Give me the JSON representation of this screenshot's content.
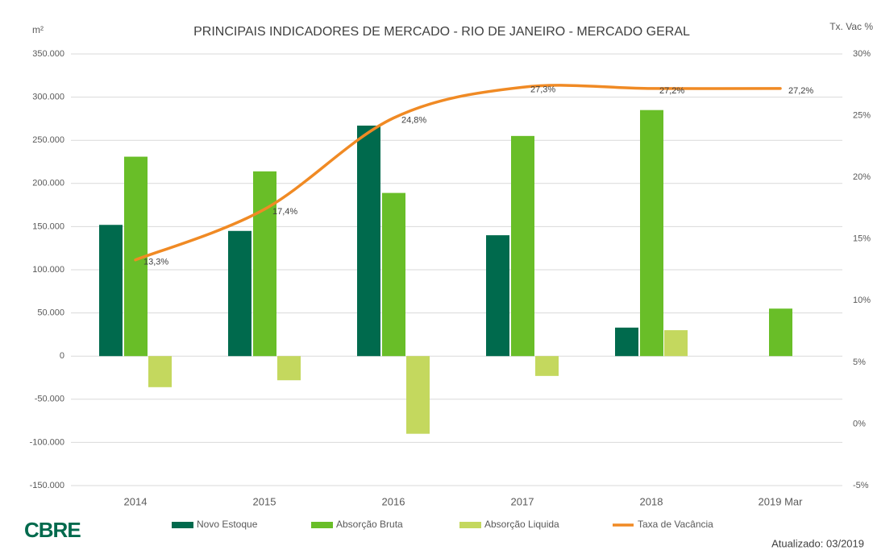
{
  "chart_data": {
    "type": "bar",
    "title": "PRINCIPAIS INDICADORES DE MERCADO - RIO DE JANEIRO - MERCADO GERAL",
    "y_label": "m²",
    "y2_label": "Tx. Vac %",
    "logo": "CBRE",
    "note": "Atualizado: 03/2019",
    "categories": [
      "2014",
      "2015",
      "2016",
      "2017",
      "2018",
      "2019 Mar"
    ],
    "series": [
      {
        "name": "Novo Estoque",
        "color": "#006a4d",
        "values": [
          152000,
          145000,
          267000,
          140000,
          33000,
          null
        ]
      },
      {
        "name": "Absorção Bruta",
        "color": "#69be28",
        "values": [
          231000,
          214000,
          189000,
          255000,
          285000,
          55000
        ]
      },
      {
        "name": "Absorção Liquida",
        "color": "#c4d85e",
        "values": [
          -36000,
          -28000,
          -90000,
          -23000,
          30000,
          null
        ]
      },
      {
        "name": "Taxa de Vacância",
        "color": "#f08a24",
        "type": "line",
        "axis": "y2",
        "values": [
          13.3,
          17.4,
          24.8,
          27.3,
          27.2,
          27.2
        ],
        "value_labels": [
          "13,3%",
          "17,4%",
          "24,8%",
          "27,3%",
          "27,2%",
          "27,2%"
        ]
      }
    ],
    "ylim": [
      -150000,
      350000
    ],
    "yticks": [
      {
        "value": -150000,
        "label": "-150.000"
      },
      {
        "value": -100000,
        "label": "-100.000"
      },
      {
        "value": -50000,
        "label": "-50.000"
      },
      0,
      {
        "value": 50000,
        "label": "50.000"
      },
      {
        "value": 100000,
        "label": "100.000"
      },
      {
        "value": 150000,
        "label": "150.000"
      },
      {
        "value": 200000,
        "label": "200.000"
      },
      {
        "value": 250000,
        "label": "250.000"
      },
      {
        "value": 300000,
        "label": "300.000"
      },
      {
        "value": 350000,
        "label": "350.000"
      }
    ],
    "y2lim": [
      -5,
      30
    ],
    "y2ticks": [
      {
        "value": -5,
        "label": "-5%"
      },
      {
        "value": 0,
        "label": "0%"
      },
      {
        "value": 5,
        "label": "5%"
      },
      {
        "value": 10,
        "label": "10%"
      },
      {
        "value": 15,
        "label": "15%"
      },
      {
        "value": 20,
        "label": "20%"
      },
      {
        "value": 25,
        "label": "25%"
      },
      {
        "value": 30,
        "label": "30%"
      }
    ],
    "grid": true,
    "legend": "bottom"
  }
}
